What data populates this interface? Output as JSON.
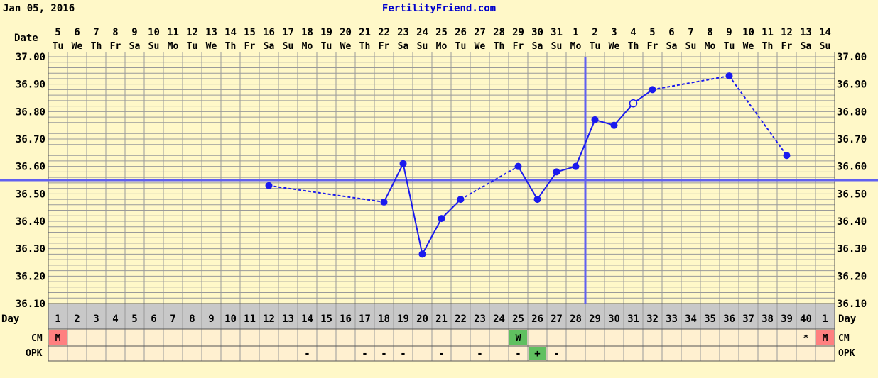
{
  "header": {
    "date": "Jan 05, 2016",
    "site": "FertilityFriend.com"
  },
  "labels": {
    "date": "Date",
    "day": "Day",
    "cm": "CM",
    "opk": "OPK"
  },
  "colors": {
    "background": "#fff8c8",
    "grid": "#9a9a9a",
    "temp_line": "#1a1aee",
    "coverline": "#6060f0",
    "site_link": "#0000cc",
    "day_row_bg": "#c8c8c8",
    "menses": "#ff8080",
    "egg_white": "#60c060",
    "opk_positive": "#60c060"
  },
  "chart_data": {
    "type": "line",
    "title": "",
    "ylim": [
      36.1,
      37.0
    ],
    "y_ticks": [
      "37.00",
      "36.90",
      "36.80",
      "36.70",
      "36.60",
      "36.50",
      "36.40",
      "36.30",
      "36.20",
      "36.10"
    ],
    "x_dates": [
      "5",
      "6",
      "7",
      "8",
      "9",
      "10",
      "11",
      "12",
      "13",
      "14",
      "15",
      "16",
      "17",
      "18",
      "19",
      "20",
      "21",
      "22",
      "23",
      "24",
      "25",
      "26",
      "27",
      "28",
      "29",
      "30",
      "31",
      "1",
      "2",
      "3",
      "4",
      "5",
      "6",
      "7",
      "8",
      "9",
      "10",
      "11",
      "12",
      "13",
      "14"
    ],
    "x_weekdays": [
      "Tu",
      "We",
      "Th",
      "Fr",
      "Sa",
      "Su",
      "Mo",
      "Tu",
      "We",
      "Th",
      "Fr",
      "Sa",
      "Su",
      "Mo",
      "Tu",
      "We",
      "Th",
      "Fr",
      "Sa",
      "Su",
      "Mo",
      "Tu",
      "We",
      "Th",
      "Fr",
      "Sa",
      "Su",
      "Mo",
      "Tu",
      "We",
      "Th",
      "Fr",
      "Sa",
      "Su",
      "Mo",
      "Tu",
      "We",
      "Th",
      "Fr",
      "Sa",
      "Su"
    ],
    "cycle_days": [
      "1",
      "2",
      "3",
      "4",
      "5",
      "6",
      "7",
      "8",
      "9",
      "10",
      "11",
      "12",
      "13",
      "14",
      "15",
      "16",
      "17",
      "18",
      "19",
      "20",
      "21",
      "22",
      "23",
      "24",
      "25",
      "26",
      "27",
      "28",
      "29",
      "30",
      "31",
      "32",
      "33",
      "34",
      "35",
      "36",
      "37",
      "38",
      "39",
      "40",
      "1"
    ],
    "temperatures": [
      {
        "day": 12,
        "value": 36.53
      },
      {
        "day": 18,
        "value": 36.47
      },
      {
        "day": 19,
        "value": 36.61
      },
      {
        "day": 20,
        "value": 36.28
      },
      {
        "day": 21,
        "value": 36.41
      },
      {
        "day": 22,
        "value": 36.48
      },
      {
        "day": 25,
        "value": 36.6
      },
      {
        "day": 26,
        "value": 36.48
      },
      {
        "day": 27,
        "value": 36.58
      },
      {
        "day": 28,
        "value": 36.6
      },
      {
        "day": 29,
        "value": 36.77
      },
      {
        "day": 30,
        "value": 36.75
      },
      {
        "day": 31,
        "value": 36.83,
        "open": true
      },
      {
        "day": 32,
        "value": 36.88
      },
      {
        "day": 36,
        "value": 36.93
      },
      {
        "day": 39,
        "value": 36.64
      }
    ],
    "coverline": 36.55,
    "ovulation_day": 28,
    "cm": [
      {
        "col": 1,
        "text": "M",
        "type": "menses"
      },
      {
        "col": 25,
        "text": "W",
        "type": "egg-white"
      },
      {
        "col": 40,
        "text": "*",
        "type": "note"
      },
      {
        "col": 41,
        "text": "M",
        "type": "menses"
      }
    ],
    "opk": [
      {
        "col": 14,
        "text": "-"
      },
      {
        "col": 17,
        "text": "-"
      },
      {
        "col": 18,
        "text": "-"
      },
      {
        "col": 19,
        "text": "-"
      },
      {
        "col": 21,
        "text": "-"
      },
      {
        "col": 23,
        "text": "-"
      },
      {
        "col": 25,
        "text": "-"
      },
      {
        "col": 26,
        "text": "+",
        "positive": true
      },
      {
        "col": 27,
        "text": "-"
      }
    ]
  }
}
